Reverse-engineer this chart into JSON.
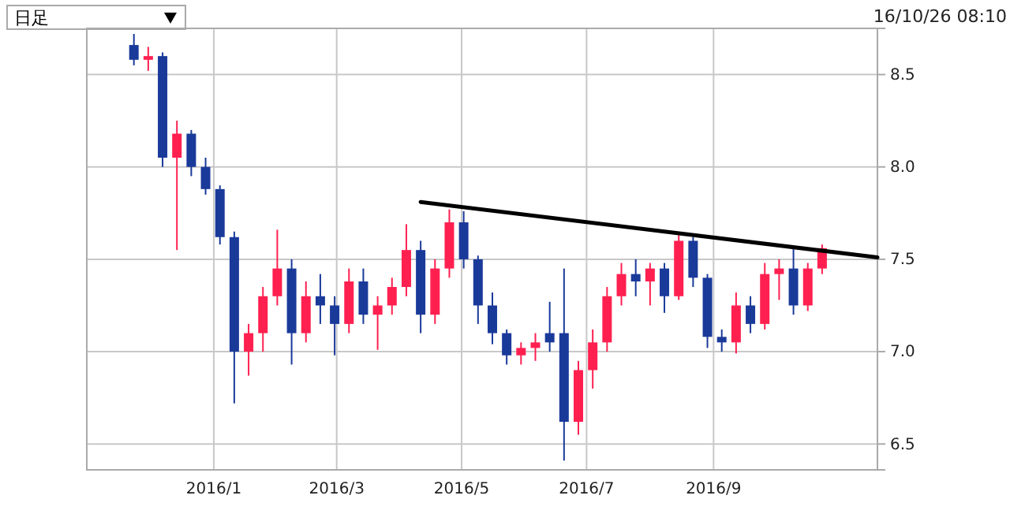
{
  "chart_data": {
    "type": "candlestick",
    "annotations": [
      "日足",
      "16/10/26 08:10"
    ],
    "x": [
      "2015-11-23",
      "2015-11-30",
      "2015-12-07",
      "2015-12-14",
      "2015-12-21",
      "2015-12-28",
      "2016-01-04",
      "2016-01-11",
      "2016-01-18",
      "2016-01-25",
      "2016-02-01",
      "2016-02-08",
      "2016-02-15",
      "2016-02-22",
      "2016-02-29",
      "2016-03-07",
      "2016-03-14",
      "2016-03-21",
      "2016-03-28",
      "2016-04-04",
      "2016-04-11",
      "2016-04-18",
      "2016-04-25",
      "2016-05-02",
      "2016-05-09",
      "2016-05-16",
      "2016-05-23",
      "2016-05-30",
      "2016-06-06",
      "2016-06-13",
      "2016-06-20",
      "2016-06-27",
      "2016-07-04",
      "2016-07-11",
      "2016-07-18",
      "2016-07-25",
      "2016-08-01",
      "2016-08-08",
      "2016-08-15",
      "2016-08-22",
      "2016-08-29",
      "2016-09-05",
      "2016-09-12",
      "2016-09-19",
      "2016-09-26",
      "2016-10-03",
      "2016-10-10",
      "2016-10-17",
      "2016-10-24"
    ],
    "ohlc": [
      [
        8.66,
        8.72,
        8.55,
        8.58
      ],
      [
        8.58,
        8.65,
        8.52,
        8.6
      ],
      [
        8.6,
        8.62,
        8.0,
        8.05
      ],
      [
        8.05,
        8.25,
        7.55,
        8.18
      ],
      [
        8.18,
        8.2,
        7.95,
        8.0
      ],
      [
        8.0,
        8.05,
        7.85,
        7.88
      ],
      [
        7.88,
        7.9,
        7.58,
        7.62
      ],
      [
        7.62,
        7.65,
        6.72,
        7.0
      ],
      [
        7.0,
        7.15,
        6.87,
        7.1
      ],
      [
        7.1,
        7.35,
        7.0,
        7.3
      ],
      [
        7.3,
        7.66,
        7.25,
        7.45
      ],
      [
        7.45,
        7.5,
        6.93,
        7.1
      ],
      [
        7.1,
        7.38,
        7.05,
        7.3
      ],
      [
        7.3,
        7.42,
        7.15,
        7.25
      ],
      [
        7.25,
        7.3,
        6.98,
        7.15
      ],
      [
        7.15,
        7.45,
        7.1,
        7.38
      ],
      [
        7.38,
        7.45,
        7.15,
        7.2
      ],
      [
        7.2,
        7.3,
        7.01,
        7.25
      ],
      [
        7.25,
        7.4,
        7.2,
        7.35
      ],
      [
        7.35,
        7.69,
        7.3,
        7.55
      ],
      [
        7.55,
        7.6,
        7.1,
        7.2
      ],
      [
        7.2,
        7.5,
        7.15,
        7.45
      ],
      [
        7.45,
        7.77,
        7.4,
        7.7
      ],
      [
        7.7,
        7.76,
        7.45,
        7.5
      ],
      [
        7.5,
        7.52,
        7.15,
        7.25
      ],
      [
        7.25,
        7.32,
        7.04,
        7.1
      ],
      [
        7.1,
        7.12,
        6.93,
        6.98
      ],
      [
        6.98,
        7.05,
        6.93,
        7.02
      ],
      [
        7.02,
        7.1,
        6.95,
        7.05
      ],
      [
        7.1,
        7.27,
        7.0,
        7.05
      ],
      [
        7.1,
        7.45,
        6.41,
        6.62
      ],
      [
        6.62,
        6.95,
        6.55,
        6.9
      ],
      [
        6.9,
        7.12,
        6.8,
        7.05
      ],
      [
        7.05,
        7.35,
        7.0,
        7.3
      ],
      [
        7.3,
        7.48,
        7.25,
        7.42
      ],
      [
        7.42,
        7.5,
        7.3,
        7.38
      ],
      [
        7.38,
        7.48,
        7.25,
        7.45
      ],
      [
        7.45,
        7.48,
        7.21,
        7.3
      ],
      [
        7.3,
        7.64,
        7.28,
        7.6
      ],
      [
        7.6,
        7.62,
        7.35,
        7.4
      ],
      [
        7.4,
        7.42,
        7.02,
        7.08
      ],
      [
        7.08,
        7.12,
        7.0,
        7.05
      ],
      [
        7.05,
        7.32,
        6.99,
        7.25
      ],
      [
        7.25,
        7.3,
        7.1,
        7.15
      ],
      [
        7.15,
        7.48,
        7.12,
        7.42
      ],
      [
        7.42,
        7.5,
        7.28,
        7.45
      ],
      [
        7.45,
        7.56,
        7.2,
        7.25
      ],
      [
        7.25,
        7.48,
        7.22,
        7.45
      ],
      [
        7.45,
        7.58,
        7.42,
        7.56
      ]
    ],
    "colors": [
      "#1a3a9a",
      "#ff2050",
      "#1a3a9a",
      "#ff2050",
      "#1a3a9a",
      "#1a3a9a",
      "#1a3a9a",
      "#1a3a9a",
      "#ff2050",
      "#ff2050",
      "#ff2050",
      "#1a3a9a",
      "#ff2050",
      "#1a3a9a",
      "#1a3a9a",
      "#ff2050",
      "#1a3a9a",
      "#ff2050",
      "#ff2050",
      "#ff2050",
      "#1a3a9a",
      "#ff2050",
      "#ff2050",
      "#1a3a9a",
      "#1a3a9a",
      "#1a3a9a",
      "#1a3a9a",
      "#ff2050",
      "#ff2050",
      "#1a3a9a",
      "#1a3a9a",
      "#ff2050",
      "#ff2050",
      "#ff2050",
      "#ff2050",
      "#1a3a9a",
      "#ff2050",
      "#1a3a9a",
      "#ff2050",
      "#1a3a9a",
      "#1a3a9a",
      "#1a3a9a",
      "#ff2050",
      "#1a3a9a",
      "#ff2050",
      "#ff2050",
      "#1a3a9a",
      "#ff2050",
      "#ff2050"
    ],
    "series": [
      {
        "type": "line",
        "x": [
          "2016-04-11",
          "2016-11-20"
        ],
        "values": [
          7.81,
          7.51
        ],
        "color": "#000000"
      }
    ],
    "xlim": [
      "2015-10-31",
      "2016-11-20"
    ],
    "xticks": [
      {
        "value": "2016-01-01",
        "label": "2016/1"
      },
      {
        "value": "2016-03-01",
        "label": "2016/3"
      },
      {
        "value": "2016-05-01",
        "label": "2016/5"
      },
      {
        "value": "2016-07-01",
        "label": "2016/7"
      },
      {
        "value": "2016-09-01",
        "label": "2016/9"
      }
    ],
    "ylim": [
      6.36,
      8.75
    ],
    "yticks": [
      6.5,
      {
        "value": 7,
        "label": "7.0"
      },
      7.5,
      {
        "value": 8,
        "label": "8.0"
      },
      8.5
    ],
    "grid": true
  }
}
